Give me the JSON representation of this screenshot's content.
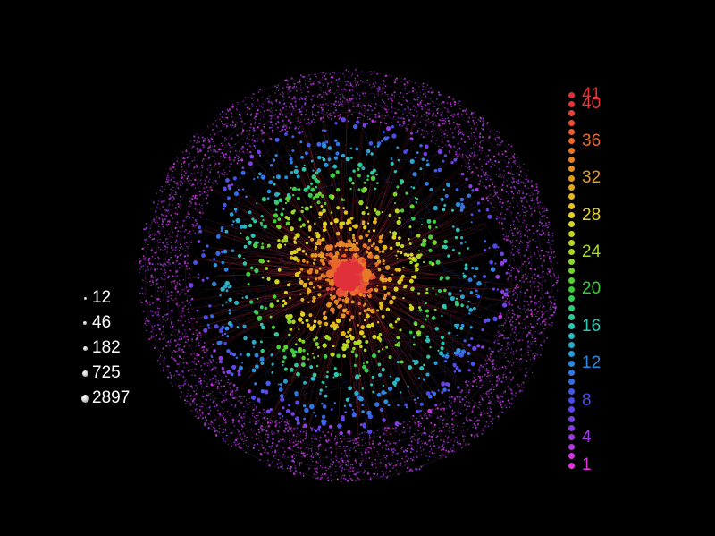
{
  "size_legend": {
    "items": [
      {
        "label": "12",
        "value": 12
      },
      {
        "label": "46",
        "value": 46
      },
      {
        "label": "182",
        "value": 182
      },
      {
        "label": "725",
        "value": 725
      },
      {
        "label": "2897",
        "value": 2897
      }
    ]
  },
  "color_legend": {
    "min": 1,
    "max": 41,
    "labels": [
      {
        "label": "41",
        "value": 41,
        "color": "#e0303a"
      },
      {
        "label": "40",
        "value": 40,
        "color": "#e2383a"
      },
      {
        "label": "36",
        "value": 36,
        "color": "#e86a2c"
      },
      {
        "label": "32",
        "value": 32,
        "color": "#e29a20"
      },
      {
        "label": "28",
        "value": 28,
        "color": "#e6d21e"
      },
      {
        "label": "24",
        "value": 24,
        "color": "#a8d828"
      },
      {
        "label": "20",
        "value": 20,
        "color": "#3ccc38"
      },
      {
        "label": "16",
        "value": 16,
        "color": "#2cc8b4"
      },
      {
        "label": "12",
        "value": 12,
        "color": "#2a8ae0"
      },
      {
        "label": "8",
        "value": 8,
        "color": "#4a4ae8"
      },
      {
        "label": "4",
        "value": 4,
        "color": "#9a3ae0"
      },
      {
        "label": "1",
        "value": 1,
        "color": "#e038d8"
      }
    ]
  },
  "colors": {
    "background": "#000000",
    "edge": "#c83040",
    "outer_shell": "#b040d0"
  }
}
